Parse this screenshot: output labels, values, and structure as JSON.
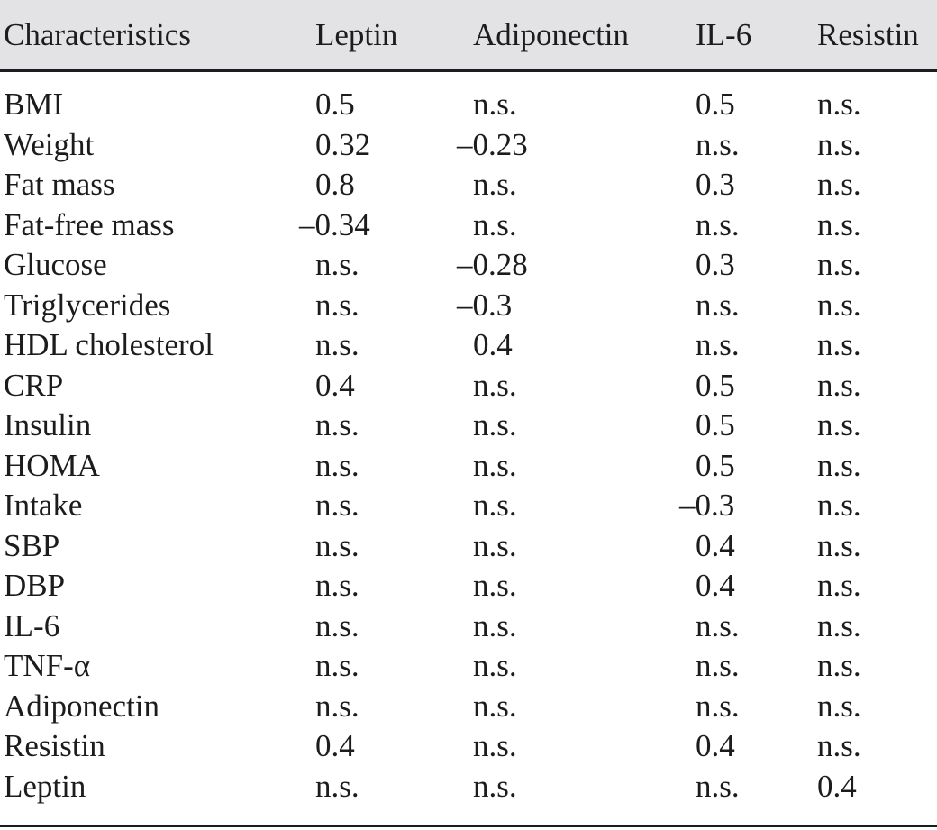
{
  "table": {
    "columns": [
      "Characteristics",
      "Leptin",
      "Adiponectin",
      "IL-6",
      "Resistin"
    ],
    "rows": [
      {
        "label": "BMI",
        "values": [
          "0.5",
          "n.s.",
          "0.5",
          "n.s."
        ]
      },
      {
        "label": "Weight",
        "values": [
          "0.32",
          "–0.23",
          "n.s.",
          "n.s."
        ]
      },
      {
        "label": "Fat mass",
        "values": [
          "0.8",
          "n.s.",
          "0.3",
          "n.s."
        ]
      },
      {
        "label": "Fat-free mass",
        "values": [
          "–0.34",
          "n.s.",
          "n.s.",
          "n.s."
        ]
      },
      {
        "label": "Glucose",
        "values": [
          "n.s.",
          "–0.28",
          "0.3",
          "n.s."
        ]
      },
      {
        "label": "Triglycerides",
        "values": [
          "n.s.",
          "–0.3",
          "n.s.",
          "n.s."
        ]
      },
      {
        "label": "HDL cholesterol",
        "values": [
          "n.s.",
          "0.4",
          "n.s.",
          "n.s."
        ]
      },
      {
        "label": "CRP",
        "values": [
          "0.4",
          "n.s.",
          "0.5",
          "n.s."
        ]
      },
      {
        "label": "Insulin",
        "values": [
          "n.s.",
          "n.s.",
          "0.5",
          "n.s."
        ]
      },
      {
        "label": "HOMA",
        "values": [
          "n.s.",
          "n.s.",
          "0.5",
          "n.s."
        ]
      },
      {
        "label": "Intake",
        "values": [
          "n.s.",
          "n.s.",
          "–0.3",
          "n.s."
        ]
      },
      {
        "label": "SBP",
        "values": [
          "n.s.",
          "n.s.",
          "0.4",
          "n.s."
        ]
      },
      {
        "label": "DBP",
        "values": [
          "n.s.",
          "n.s.",
          "0.4",
          "n.s."
        ]
      },
      {
        "label": "IL-6",
        "values": [
          "n.s.",
          "n.s.",
          "n.s.",
          "n.s."
        ]
      },
      {
        "label": "TNF-α",
        "values": [
          "n.s.",
          "n.s.",
          "n.s.",
          "n.s."
        ]
      },
      {
        "label": "Adiponectin",
        "values": [
          "n.s.",
          "n.s.",
          "n.s.",
          "n.s."
        ]
      },
      {
        "label": "Resistin",
        "values": [
          "0.4",
          "n.s.",
          "0.4",
          "n.s."
        ]
      },
      {
        "label": "Leptin",
        "values": [
          "n.s.",
          "n.s.",
          "n.s.",
          "0.4"
        ]
      }
    ],
    "not_significant_label": "n.s."
  },
  "colors": {
    "header_background": "#e3e3e5",
    "rule": "#1c1c1e",
    "text": "#1c1c1e",
    "page_background": "#ffffff"
  }
}
